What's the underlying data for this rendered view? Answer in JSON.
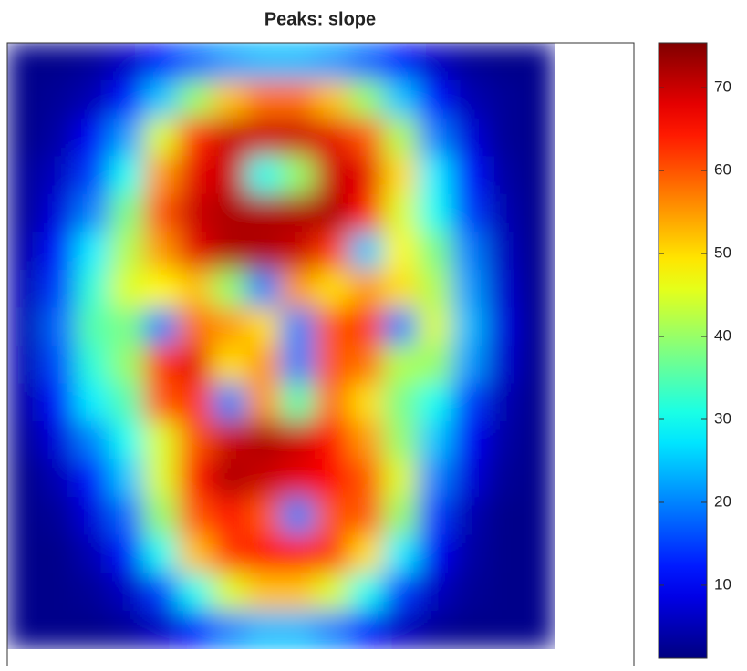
{
  "chart_data": {
    "type": "heatmap",
    "title": "Peaks: slope",
    "colormap": "jet",
    "clim": [
      1.2,
      75.4
    ],
    "cticks": [
      10,
      20,
      30,
      40,
      50,
      60,
      70
    ],
    "z": [
      [
        2,
        2,
        3,
        6,
        12,
        18,
        22,
        24,
        24,
        22,
        18,
        12,
        6,
        3,
        2,
        2
      ],
      [
        2,
        3,
        5,
        12,
        25,
        40,
        52,
        58,
        58,
        52,
        40,
        25,
        12,
        5,
        3,
        2
      ],
      [
        2,
        4,
        10,
        22,
        45,
        63,
        70,
        70,
        70,
        68,
        60,
        42,
        20,
        8,
        3,
        2
      ],
      [
        3,
        6,
        15,
        30,
        55,
        68,
        70,
        30,
        40,
        70,
        68,
        50,
        28,
        12,
        4,
        2
      ],
      [
        3,
        8,
        20,
        38,
        60,
        70,
        72,
        72,
        72,
        72,
        65,
        45,
        30,
        15,
        5,
        2
      ],
      [
        4,
        12,
        28,
        42,
        55,
        68,
        72,
        72,
        70,
        62,
        25,
        48,
        38,
        20,
        6,
        2
      ],
      [
        5,
        15,
        32,
        45,
        48,
        52,
        40,
        20,
        55,
        50,
        55,
        50,
        42,
        22,
        7,
        2
      ],
      [
        5,
        18,
        35,
        38,
        20,
        58,
        55,
        50,
        20,
        60,
        62,
        20,
        45,
        24,
        8,
        2
      ],
      [
        5,
        16,
        32,
        40,
        62,
        68,
        50,
        55,
        20,
        60,
        58,
        42,
        40,
        22,
        7,
        2
      ],
      [
        4,
        12,
        28,
        35,
        60,
        62,
        20,
        55,
        35,
        58,
        50,
        38,
        30,
        15,
        5,
        2
      ],
      [
        3,
        8,
        20,
        30,
        45,
        60,
        70,
        72,
        70,
        65,
        55,
        40,
        25,
        10,
        4,
        2
      ],
      [
        2,
        5,
        12,
        25,
        45,
        65,
        72,
        70,
        68,
        66,
        60,
        45,
        20,
        8,
        3,
        2
      ],
      [
        2,
        3,
        8,
        18,
        40,
        60,
        65,
        60,
        20,
        60,
        60,
        40,
        15,
        5,
        2,
        2
      ],
      [
        2,
        2,
        5,
        12,
        30,
        52,
        62,
        65,
        65,
        62,
        50,
        28,
        10,
        4,
        2,
        2
      ],
      [
        2,
        2,
        3,
        6,
        15,
        30,
        45,
        52,
        52,
        45,
        30,
        15,
        6,
        3,
        2,
        2
      ],
      [
        2,
        2,
        2,
        3,
        6,
        12,
        20,
        24,
        24,
        20,
        12,
        6,
        3,
        2,
        2,
        2
      ]
    ]
  }
}
